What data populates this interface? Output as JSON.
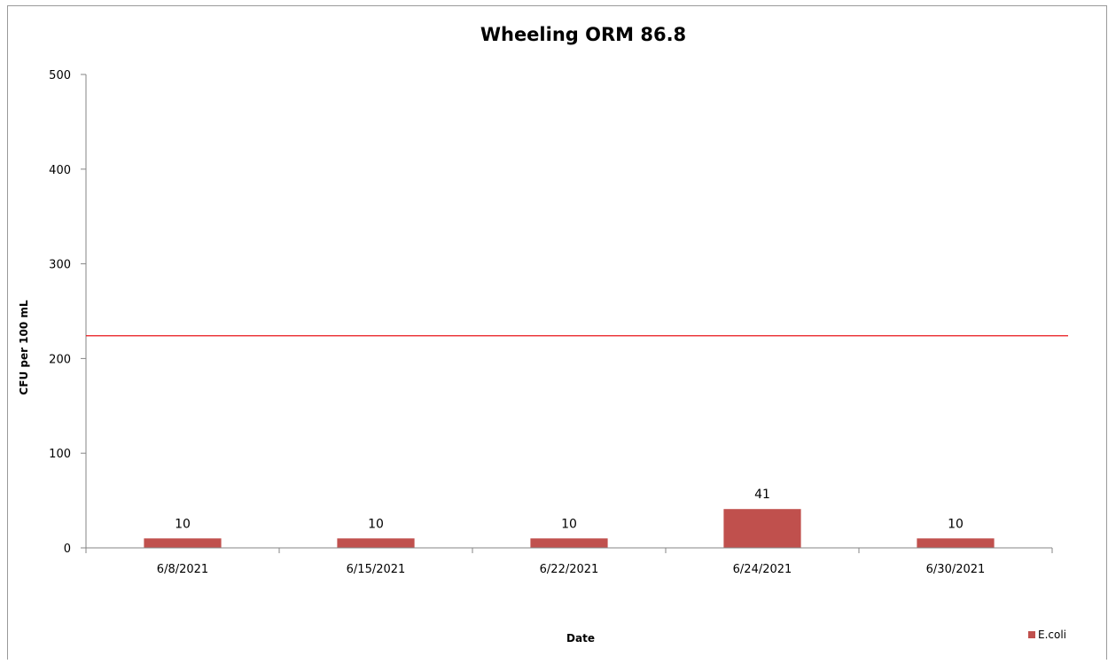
{
  "chart_data": {
    "type": "bar",
    "title": "Wheeling ORM 86.8",
    "xlabel": "Date",
    "ylabel": "CFU per 100 mL",
    "categories": [
      "6/8/2021",
      "6/15/2021",
      "6/22/2021",
      "6/24/2021",
      "6/30/2021"
    ],
    "series": [
      {
        "name": "E.coli",
        "values": [
          10,
          10,
          10,
          41,
          10
        ],
        "color": "#c0504d"
      }
    ],
    "data_labels": [
      "10",
      "10",
      "10",
      "41",
      "10"
    ],
    "reference_line": {
      "value": 224,
      "color": "#e8141a"
    },
    "ylim": [
      0,
      500
    ],
    "yticks": [
      0,
      100,
      200,
      300,
      400,
      500
    ],
    "grid": false,
    "legend_position": "bottom-right"
  }
}
